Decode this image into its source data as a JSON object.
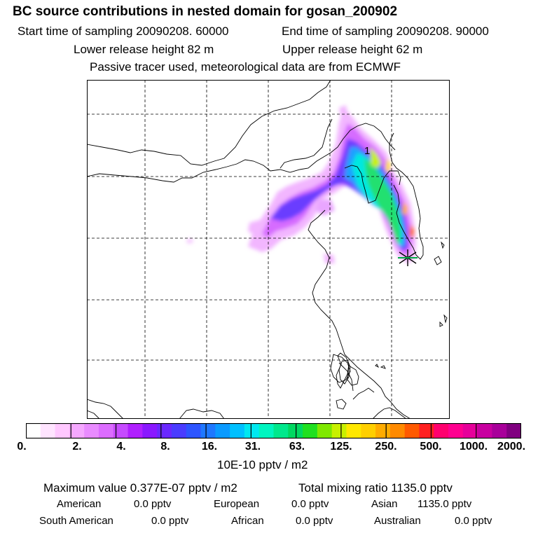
{
  "header": {
    "title": "BC  source contributions in nested domain for gosan_200902",
    "start_time": "Start time of sampling 20090208. 60000",
    "end_time": "End time of sampling 20090208. 90000",
    "lower_height": "Lower release height   82 m",
    "upper_height": "Upper release height   62 m",
    "tracer_note": "Passive tracer used, meteorological data are from ECMWF"
  },
  "map": {
    "max_marker_label": "1",
    "receptor_marker": "gosan-receptor"
  },
  "colorbar": {
    "colors": [
      "#ffffff",
      "#ffe4ff",
      "#ffc8ff",
      "#f5a8ff",
      "#e98bff",
      "#dc6cff",
      "#c64bff",
      "#b020ff",
      "#8a18ff",
      "#6a28ff",
      "#4a3cff",
      "#2e55ff",
      "#1e78ff",
      "#0a9aff",
      "#00c0ff",
      "#00e8f0",
      "#00f5c0",
      "#00e88c",
      "#00d860",
      "#20e020",
      "#7fe800",
      "#c8f000",
      "#ffe800",
      "#ffcf00",
      "#ffac00",
      "#ff8a00",
      "#ff5a00",
      "#ff2020",
      "#ff006e",
      "#ff0090",
      "#e6009a",
      "#c800a0",
      "#a8009a",
      "#800080"
    ],
    "tick_labels": [
      "0.",
      "2.",
      "4.",
      "8.",
      "16.",
      "31.",
      "63.",
      "125.",
      "250.",
      "500.",
      "1000.",
      "2000."
    ],
    "unit_label": "10E-10 pptv / m2"
  },
  "stats": {
    "max_value": "Maximum value  0.377E-07 pptv / m2",
    "total_mixing": "Total mixing ratio     1135.0 pptv",
    "american": "American",
    "american_val": "0.0 pptv",
    "european": "European",
    "european_val": "0.0 pptv",
    "asian": "Asian",
    "asian_val": "1135.0 pptv",
    "south_american": "South American",
    "south_american_val": "0.0 pptv",
    "african": "African",
    "african_val": "0.0 pptv",
    "australian": "Australian",
    "australian_val": "0.0 pptv"
  }
}
